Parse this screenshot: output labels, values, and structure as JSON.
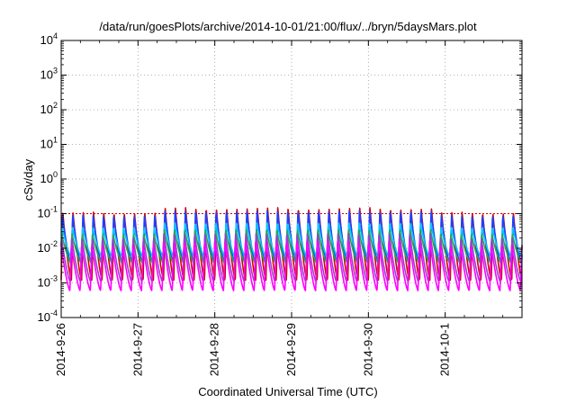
{
  "title": "/data/run/goesPlots/archive/2014-10-01/21:00/flux/../bryn/5daysMars.plot",
  "chart_data": {
    "type": "line",
    "xlabel": "Coordinated Universal Time (UTC)",
    "ylabel": "cSv/day",
    "yscale": "log",
    "ylim": [
      0.0001,
      10000
    ],
    "y_ticks": [
      {
        "base": "10",
        "exp": "-4",
        "value": 0.0001
      },
      {
        "base": "10",
        "exp": "-3",
        "value": 0.001
      },
      {
        "base": "10",
        "exp": "-2",
        "value": 0.01
      },
      {
        "base": "10",
        "exp": "-1",
        "value": 0.1
      },
      {
        "base": "10",
        "exp": "0",
        "value": 1
      },
      {
        "base": "10",
        "exp": "1",
        "value": 10
      },
      {
        "base": "10",
        "exp": "2",
        "value": 100
      },
      {
        "base": "10",
        "exp": "3",
        "value": 1000
      },
      {
        "base": "10",
        "exp": "4",
        "value": 10000
      }
    ],
    "x_tick_labels": [
      "2014-9-26",
      "2014-9-27",
      "2014-9-28",
      "2014-9-29",
      "2014-9-30",
      "2014-10-1"
    ],
    "xlim_days": [
      0,
      6.0
    ],
    "grid": true,
    "grid_style": "dotted",
    "reference_line": {
      "value": 0.1,
      "color": "#cc0000",
      "style": "dotted"
    },
    "series_colors": [
      "#d40000",
      "#1f3fff",
      "#00c8ff",
      "#22aa55",
      "#9b3fd0",
      "#ff00ff"
    ],
    "series": [
      {
        "color": "#d40000",
        "peak": 0.11,
        "trough": 0.0012
      },
      {
        "color": "#1f3fff",
        "peak": 0.09,
        "trough": 0.0035
      },
      {
        "color": "#00c8ff",
        "peak": 0.04,
        "trough": 0.006
      },
      {
        "color": "#22aa55",
        "peak": 0.025,
        "trough": 0.004
      },
      {
        "color": "#9b3fd0",
        "peak": 0.02,
        "trough": 0.0011
      },
      {
        "color": "#ff00ff",
        "peak": 0.012,
        "trough": 0.0006
      }
    ],
    "oscillation_period_hours": 3.2,
    "elevated_interval_days": [
      1.3,
      4.9
    ]
  }
}
